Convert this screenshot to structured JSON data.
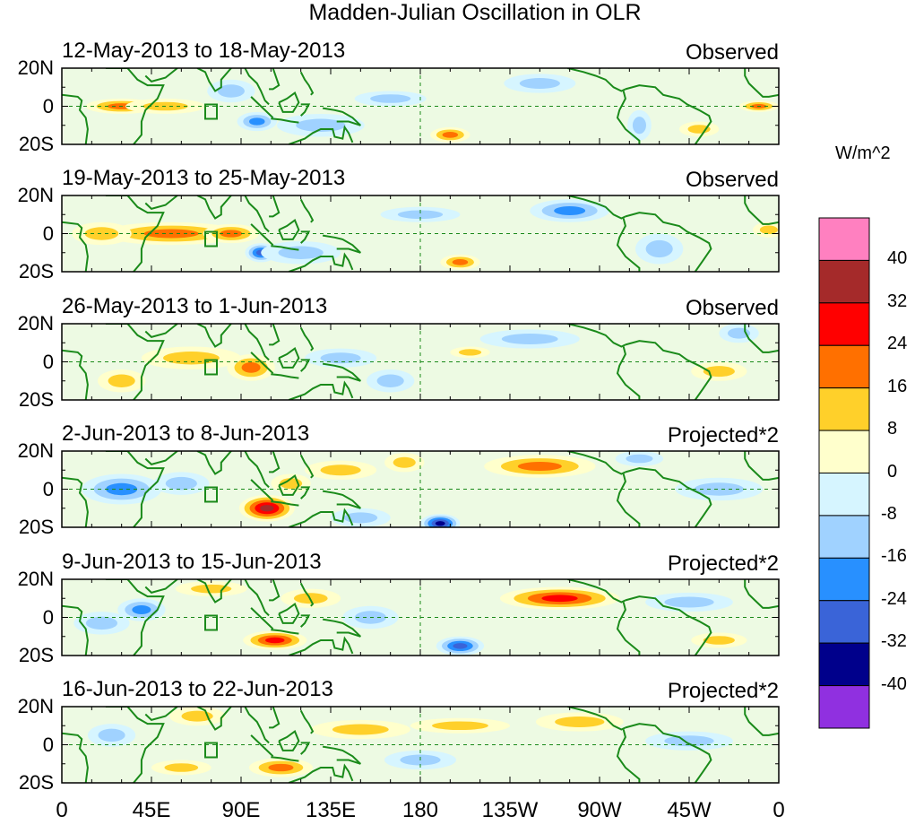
{
  "chart_data": {
    "type": "heatmap",
    "title": "Madden-Julian Oscillation in OLR",
    "units": "W/m^2",
    "x_ticks": [
      "0",
      "45E",
      "90E",
      "135E",
      "180",
      "135W",
      "90W",
      "45W",
      "0"
    ],
    "y_ticks": [
      "20N",
      "0",
      "20S"
    ],
    "colorbar": {
      "levels": [
        "40",
        "32",
        "24",
        "16",
        "8",
        "0",
        "-8",
        "-16",
        "-24",
        "-32",
        "-40"
      ],
      "colors": [
        "#ff80c0",
        "#a52a2a",
        "#ff0000",
        "#ff7000",
        "#ffd02a",
        "#ffffcc",
        "#d6f5ff",
        "#a0d2ff",
        "#2890ff",
        "#3a64d8",
        "#00008b",
        "#9030e0"
      ]
    },
    "panels": [
      {
        "period": "12-May-2013 to 18-May-2013",
        "type": "Observed",
        "blobs": [
          {
            "lon": 30,
            "lat": 0,
            "value": 20,
            "rlon": 18,
            "rlat": 4
          },
          {
            "lon": 52,
            "lat": 0,
            "value": 14,
            "rlon": 20,
            "rlat": 4
          },
          {
            "lon": 98,
            "lat": -8,
            "value": -22,
            "rlon": 10,
            "rlat": 5
          },
          {
            "lon": 85,
            "lat": 8,
            "value": -12,
            "rlon": 12,
            "rlat": 6
          },
          {
            "lon": 130,
            "lat": -10,
            "value": -14,
            "rlon": 22,
            "rlat": 6
          },
          {
            "lon": 195,
            "lat": -15,
            "value": 18,
            "rlon": 10,
            "rlat": 4
          },
          {
            "lon": 240,
            "lat": 12,
            "value": -12,
            "rlon": 18,
            "rlat": 5
          },
          {
            "lon": 290,
            "lat": -10,
            "value": -12,
            "rlon": 6,
            "rlat": 8
          },
          {
            "lon": 350,
            "lat": 0,
            "value": 20,
            "rlon": 10,
            "rlat": 3
          },
          {
            "lon": 320,
            "lat": -12,
            "value": 12,
            "rlon": 10,
            "rlat": 4
          },
          {
            "lon": 165,
            "lat": 4,
            "value": -10,
            "rlon": 18,
            "rlat": 4
          }
        ]
      },
      {
        "period": "19-May-2013 to 25-May-2013",
        "type": "Observed",
        "blobs": [
          {
            "lon": 55,
            "lat": 0,
            "value": 24,
            "rlon": 35,
            "rlat": 6
          },
          {
            "lon": 85,
            "lat": 0,
            "value": 18,
            "rlon": 14,
            "rlat": 5
          },
          {
            "lon": 20,
            "lat": 0,
            "value": 12,
            "rlon": 15,
            "rlat": 6
          },
          {
            "lon": 100,
            "lat": -10,
            "value": -26,
            "rlon": 8,
            "rlat": 5
          },
          {
            "lon": 120,
            "lat": -10,
            "value": -12,
            "rlon": 20,
            "rlat": 6
          },
          {
            "lon": 200,
            "lat": -15,
            "value": 20,
            "rlon": 10,
            "rlat": 4
          },
          {
            "lon": 255,
            "lat": 12,
            "value": -20,
            "rlon": 20,
            "rlat": 6
          },
          {
            "lon": 180,
            "lat": 10,
            "value": -10,
            "rlon": 20,
            "rlat": 4
          },
          {
            "lon": 300,
            "lat": -8,
            "value": -10,
            "rlon": 12,
            "rlat": 8
          },
          {
            "lon": 355,
            "lat": 2,
            "value": 10,
            "rlon": 8,
            "rlat": 4
          }
        ]
      },
      {
        "period": "26-May-2013 to 1-Jun-2013",
        "type": "Observed",
        "blobs": [
          {
            "lon": 95,
            "lat": -3,
            "value": 24,
            "rlon": 12,
            "rlat": 7
          },
          {
            "lon": 65,
            "lat": 2,
            "value": 14,
            "rlon": 25,
            "rlat": 6
          },
          {
            "lon": 30,
            "lat": -10,
            "value": 10,
            "rlon": 12,
            "rlat": 6
          },
          {
            "lon": 140,
            "lat": 2,
            "value": -12,
            "rlon": 18,
            "rlat": 5
          },
          {
            "lon": 165,
            "lat": -10,
            "value": -12,
            "rlon": 12,
            "rlat": 6
          },
          {
            "lon": 235,
            "lat": 12,
            "value": -10,
            "rlon": 25,
            "rlat": 5
          },
          {
            "lon": 205,
            "lat": 5,
            "value": 10,
            "rlon": 10,
            "rlat": 3
          },
          {
            "lon": 340,
            "lat": 15,
            "value": -12,
            "rlon": 10,
            "rlat": 5
          },
          {
            "lon": 330,
            "lat": -5,
            "value": 10,
            "rlon": 14,
            "rlat": 5
          }
        ]
      },
      {
        "period": "2-Jun-2013 to 8-Jun-2013",
        "type": "Projected*2",
        "blobs": [
          {
            "lon": 30,
            "lat": 0,
            "value": -24,
            "rlon": 20,
            "rlat": 8
          },
          {
            "lon": 60,
            "lat": 3,
            "value": -12,
            "rlon": 14,
            "rlat": 6
          },
          {
            "lon": 103,
            "lat": -10,
            "value": 34,
            "rlon": 14,
            "rlat": 7
          },
          {
            "lon": 115,
            "lat": 3,
            "value": 14,
            "rlon": 10,
            "rlat": 5
          },
          {
            "lon": 140,
            "lat": 10,
            "value": 12,
            "rlon": 18,
            "rlat": 5
          },
          {
            "lon": 172,
            "lat": 14,
            "value": 14,
            "rlon": 10,
            "rlat": 5
          },
          {
            "lon": 190,
            "lat": -18,
            "value": -36,
            "rlon": 10,
            "rlat": 5
          },
          {
            "lon": 240,
            "lat": 12,
            "value": 24,
            "rlon": 28,
            "rlat": 6
          },
          {
            "lon": 150,
            "lat": -15,
            "value": -14,
            "rlon": 15,
            "rlat": 5
          },
          {
            "lon": 290,
            "lat": 16,
            "value": -14,
            "rlon": 12,
            "rlat": 4
          },
          {
            "lon": 330,
            "lat": 0,
            "value": -12,
            "rlon": 22,
            "rlat": 6
          }
        ]
      },
      {
        "period": "9-Jun-2013 to 15-Jun-2013",
        "type": "Projected*2",
        "blobs": [
          {
            "lon": 40,
            "lat": 4,
            "value": -22,
            "rlon": 12,
            "rlat": 6
          },
          {
            "lon": 20,
            "lat": -3,
            "value": -12,
            "rlon": 14,
            "rlat": 6
          },
          {
            "lon": 75,
            "lat": 15,
            "value": 14,
            "rlon": 18,
            "rlat": 4
          },
          {
            "lon": 107,
            "lat": -12,
            "value": 30,
            "rlon": 16,
            "rlat": 5
          },
          {
            "lon": 125,
            "lat": 10,
            "value": 12,
            "rlon": 15,
            "rlat": 5
          },
          {
            "lon": 200,
            "lat": -15,
            "value": -26,
            "rlon": 12,
            "rlat": 5
          },
          {
            "lon": 250,
            "lat": 10,
            "value": 26,
            "rlon": 30,
            "rlat": 6
          },
          {
            "lon": 155,
            "lat": 0,
            "value": -12,
            "rlon": 14,
            "rlat": 6
          },
          {
            "lon": 315,
            "lat": 8,
            "value": -10,
            "rlon": 22,
            "rlat": 5
          },
          {
            "lon": 330,
            "lat": -12,
            "value": 10,
            "rlon": 14,
            "rlat": 4
          }
        ]
      },
      {
        "period": "16-Jun-2013 to 22-Jun-2013",
        "type": "Projected*2",
        "blobs": [
          {
            "lon": 68,
            "lat": 15,
            "value": 14,
            "rlon": 14,
            "rlat": 5
          },
          {
            "lon": 110,
            "lat": -12,
            "value": 20,
            "rlon": 16,
            "rlat": 5
          },
          {
            "lon": 25,
            "lat": 5,
            "value": -12,
            "rlon": 12,
            "rlat": 6
          },
          {
            "lon": 150,
            "lat": 8,
            "value": 10,
            "rlon": 25,
            "rlat": 5
          },
          {
            "lon": 200,
            "lat": 10,
            "value": 10,
            "rlon": 25,
            "rlat": 4
          },
          {
            "lon": 260,
            "lat": 12,
            "value": 12,
            "rlon": 22,
            "rlat": 5
          },
          {
            "lon": 315,
            "lat": 2,
            "value": -10,
            "rlon": 22,
            "rlat": 5
          },
          {
            "lon": 180,
            "lat": -8,
            "value": -10,
            "rlon": 18,
            "rlat": 5
          },
          {
            "lon": 60,
            "lat": -12,
            "value": 10,
            "rlon": 15,
            "rlat": 4
          }
        ]
      }
    ]
  }
}
